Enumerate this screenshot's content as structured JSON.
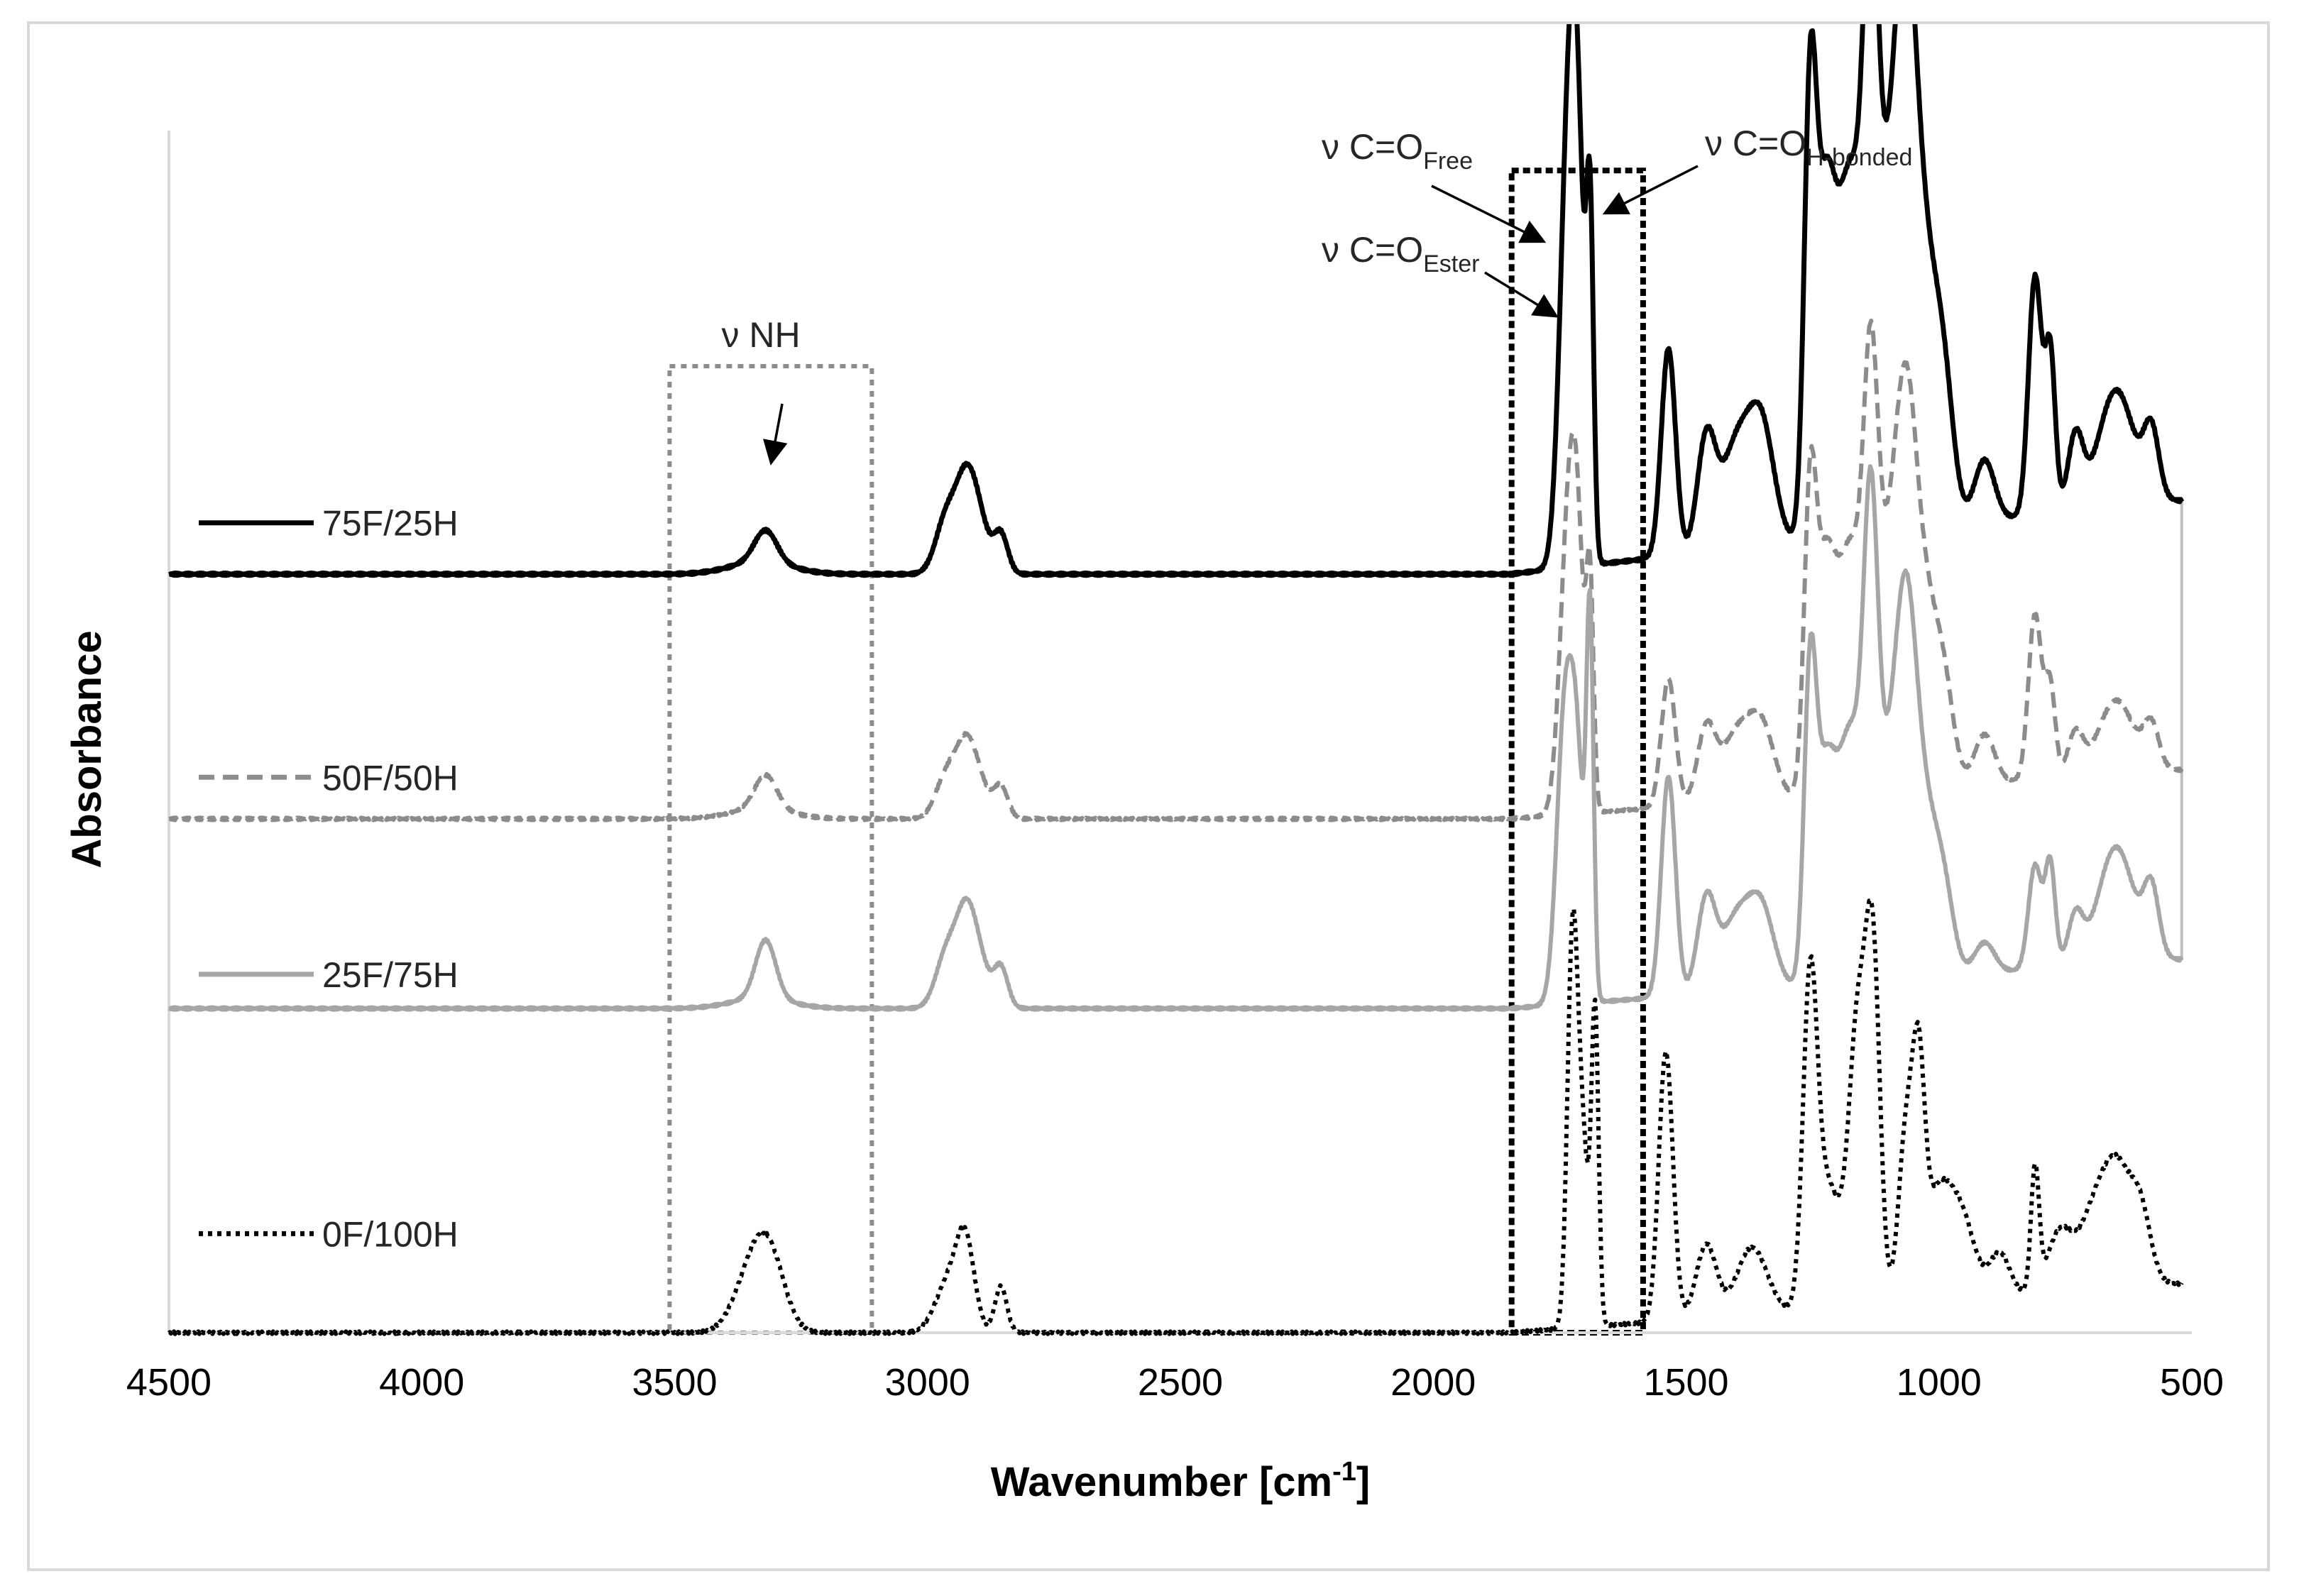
{
  "chart_data": {
    "type": "line",
    "title": "",
    "xlabel": "Wavenumber [cm",
    "xlabel_sup": "-1",
    "xlabel_end": "]",
    "ylabel": "Absorbance",
    "xlim": [
      4500,
      500
    ],
    "ylim": [
      0,
      10
    ],
    "xticks": [
      4500,
      4000,
      3500,
      3000,
      2500,
      2000,
      1500,
      1000,
      500
    ],
    "grid": false,
    "legend": "left, next to each trace",
    "series": [
      {
        "name": "75F/25H",
        "color": "#000000",
        "style": "solid",
        "baseline": 6.2,
        "end": 6.8,
        "peaks": [
          [
            3320,
            0.26,
            22
          ],
          [
            3330,
            0.1,
            60
          ],
          [
            2960,
            0.5,
            22
          ],
          [
            2925,
            0.55,
            18
          ],
          [
            2900,
            0.45,
            20
          ],
          [
            2855,
            0.32,
            14
          ],
          [
            1735,
            3.0,
            16
          ],
          [
            1715,
            3.0,
            14
          ],
          [
            1690,
            2.6,
            7
          ],
          [
            1535,
            1.7,
            14
          ],
          [
            1460,
            0.9,
            18
          ],
          [
            1400,
            0.85,
            30
          ],
          [
            1350,
            0.9,
            25
          ],
          [
            1255,
            3.2,
            12
          ],
          [
            1225,
            2.6,
            20
          ],
          [
            1175,
            2.8,
            25
          ],
          [
            1135,
            3.4,
            14
          ],
          [
            1100,
            2.6,
            30
          ],
          [
            1065,
            2.9,
            20
          ],
          [
            1030,
            2.0,
            25
          ],
          [
            990,
            1.0,
            20
          ],
          [
            910,
            0.5,
            20
          ],
          [
            810,
            1.95,
            13
          ],
          [
            780,
            1.3,
            10
          ],
          [
            730,
            0.6,
            15
          ],
          [
            650,
            0.95,
            35
          ],
          [
            580,
            0.55,
            15
          ]
        ]
      },
      {
        "name": "50F/50H",
        "color": "#8c8c8c",
        "style": "dashed",
        "baseline": 4.2,
        "end": 4.6,
        "peaks": [
          [
            3320,
            0.28,
            22
          ],
          [
            3330,
            0.08,
            60
          ],
          [
            2960,
            0.38,
            22
          ],
          [
            2925,
            0.45,
            18
          ],
          [
            2900,
            0.3,
            20
          ],
          [
            2855,
            0.26,
            14
          ],
          [
            1735,
            2.0,
            16
          ],
          [
            1715,
            1.9,
            14
          ],
          [
            1690,
            1.7,
            7
          ],
          [
            1535,
            1.05,
            14
          ],
          [
            1460,
            0.6,
            18
          ],
          [
            1400,
            0.55,
            30
          ],
          [
            1350,
            0.55,
            25
          ],
          [
            1255,
            2.2,
            12
          ],
          [
            1225,
            1.75,
            20
          ],
          [
            1175,
            1.9,
            25
          ],
          [
            1135,
            2.4,
            14
          ],
          [
            1100,
            1.8,
            30
          ],
          [
            1065,
            2.05,
            20
          ],
          [
            1030,
            1.4,
            25
          ],
          [
            990,
            0.7,
            20
          ],
          [
            910,
            0.4,
            20
          ],
          [
            810,
            1.35,
            13
          ],
          [
            780,
            0.75,
            10
          ],
          [
            730,
            0.35,
            15
          ],
          [
            650,
            0.6,
            35
          ],
          [
            580,
            0.35,
            15
          ]
        ]
      },
      {
        "name": "25F/75H",
        "color": "#a6a6a6",
        "style": "solid",
        "baseline": 2.65,
        "end": 3.05,
        "peaks": [
          [
            3320,
            0.48,
            20
          ],
          [
            3330,
            0.08,
            60
          ],
          [
            2960,
            0.48,
            22
          ],
          [
            2925,
            0.58,
            18
          ],
          [
            2900,
            0.4,
            20
          ],
          [
            2855,
            0.33,
            14
          ],
          [
            1740,
            2.3,
            16
          ],
          [
            1715,
            1.7,
            14
          ],
          [
            1690,
            3.0,
            7
          ],
          [
            1535,
            1.8,
            14
          ],
          [
            1460,
            0.75,
            18
          ],
          [
            1400,
            0.6,
            30
          ],
          [
            1350,
            0.6,
            25
          ],
          [
            1255,
            2.3,
            12
          ],
          [
            1225,
            1.6,
            20
          ],
          [
            1175,
            1.95,
            25
          ],
          [
            1135,
            2.85,
            14
          ],
          [
            1100,
            1.6,
            30
          ],
          [
            1065,
            2.05,
            20
          ],
          [
            1030,
            1.25,
            25
          ],
          [
            990,
            0.6,
            20
          ],
          [
            910,
            0.25,
            20
          ],
          [
            810,
            0.85,
            13
          ],
          [
            780,
            0.85,
            10
          ],
          [
            730,
            0.4,
            15
          ],
          [
            650,
            0.95,
            35
          ],
          [
            580,
            0.55,
            15
          ]
        ]
      },
      {
        "name": "0F/100H",
        "color": "#000000",
        "style": "dotted",
        "baseline": 0.0,
        "end": 0.4,
        "peaks": [
          [
            3345,
            0.5,
            35
          ],
          [
            3310,
            0.45,
            30
          ],
          [
            2960,
            0.4,
            25
          ],
          [
            2925,
            0.7,
            18
          ],
          [
            2855,
            0.38,
            12
          ],
          [
            1725,
            3.0,
            10
          ],
          [
            1705,
            1.5,
            12
          ],
          [
            1680,
            2.5,
            7
          ],
          [
            1540,
            2.2,
            14
          ],
          [
            1460,
            0.6,
            20
          ],
          [
            1370,
            0.55,
            30
          ],
          [
            1255,
            2.5,
            14
          ],
          [
            1220,
            1.0,
            25
          ],
          [
            1160,
            2.3,
            18
          ],
          [
            1130,
            2.6,
            14
          ],
          [
            1065,
            1.35,
            15
          ],
          [
            1040,
            1.55,
            12
          ],
          [
            1000,
            0.9,
            30
          ],
          [
            950,
            0.5,
            25
          ],
          [
            880,
            0.35,
            20
          ],
          [
            810,
            1.0,
            8
          ],
          [
            760,
            0.5,
            25
          ],
          [
            700,
            0.45,
            25
          ],
          [
            650,
            1.0,
            30
          ],
          [
            600,
            0.5,
            20
          ]
        ]
      }
    ],
    "regions": [
      {
        "label": "ν NH",
        "from": 3510,
        "to": 3110,
        "color": "#8c8c8c"
      },
      {
        "label": "ν C=O",
        "from": 1845,
        "to": 1585,
        "color": "#000000"
      }
    ],
    "annotations": [
      {
        "main": "ν NH",
        "sub": "",
        "x": 3300,
        "y": 6.45
      },
      {
        "main": "ν C=O",
        "sub": "Free",
        "x": 1760,
        "y": 8.3
      },
      {
        "main": "ν C=O",
        "sub": "H-bonded",
        "x": 1680,
        "y": 8.65
      },
      {
        "main": "ν C=O",
        "sub": "Ester",
        "x": 1720,
        "y": 7.45
      }
    ]
  }
}
